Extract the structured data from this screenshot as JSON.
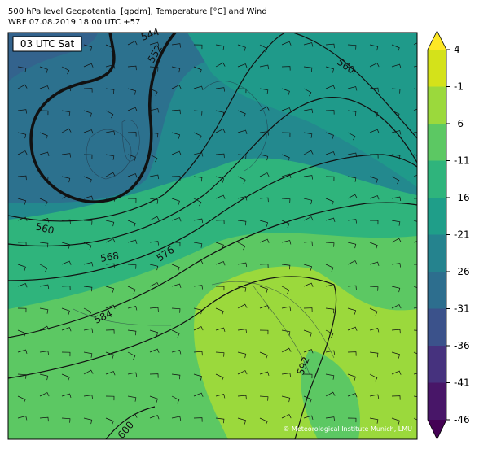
{
  "header": {
    "title_line1": "500 hPa level Geopotential [gpdm], Temperature [°C] and Wind",
    "title_line2": "WRF 07.08.2019 18:00 UTC +57"
  },
  "map": {
    "time_label": "03 UTC Sat",
    "contour_labels": [
      "544",
      "552",
      "560",
      "560",
      "568",
      "576",
      "584",
      "592",
      "600"
    ],
    "credit": "© Meteorological Institute Munich, LMU"
  },
  "colorbar": {
    "ticks": [
      4,
      -1,
      -6,
      -11,
      -16,
      -21,
      -26,
      -31,
      -36,
      -41,
      -46
    ],
    "colors": [
      "#fde725",
      "#d4e21a",
      "#9bd93c",
      "#5cc863",
      "#2fb47c",
      "#1f9e89",
      "#25838e",
      "#2d6e8e",
      "#3b528b",
      "#46327e",
      "#481668",
      "#440154"
    ]
  }
}
